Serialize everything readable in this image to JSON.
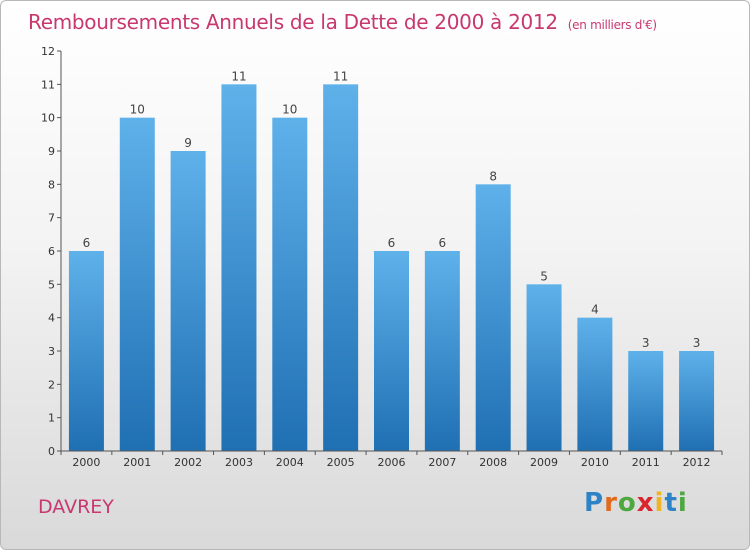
{
  "header": {
    "title": "Remboursements Annuels de la Dette de 2000 à 2012",
    "unit": "(en milliers d'€)"
  },
  "footer": {
    "town": "DAVREY",
    "logo": "Proxiti",
    "logo_colors": [
      "#2e83c6",
      "#e26a1c",
      "#4da83f",
      "#d9262e",
      "#f0b323",
      "#2e83c6",
      "#4da83f"
    ]
  },
  "colors": {
    "title": "#c8386f",
    "bar_top": "#5fb1ea",
    "bar_bottom": "#1f6fb3",
    "axis": "#555555"
  },
  "chart_data": {
    "type": "bar",
    "title": "Remboursements Annuels de la Dette de 2000 à 2012",
    "subtitle": "(en milliers d'€)",
    "categories": [
      "2000",
      "2001",
      "2002",
      "2003",
      "2004",
      "2005",
      "2006",
      "2007",
      "2008",
      "2009",
      "2010",
      "2011",
      "2012"
    ],
    "values": [
      6,
      10,
      9,
      11,
      10,
      11,
      6,
      6,
      8,
      5,
      4,
      3,
      3
    ],
    "yticks": [
      0,
      1,
      2,
      3,
      4,
      5,
      6,
      7,
      8,
      9,
      10,
      11,
      12
    ],
    "ylim": [
      0,
      12
    ],
    "grid": false,
    "data_labels": true
  }
}
